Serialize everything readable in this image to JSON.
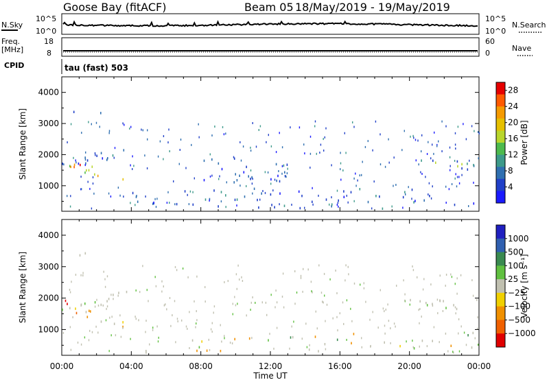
{
  "header": {
    "station": "Goose Bay (fitACF)",
    "beam": "Beam 05",
    "date_range": "18/May/2019 - 19/May/2019",
    "mode": "tau (fast) 503"
  },
  "strips": {
    "nsky_label": "N.Sky",
    "nsearch_label": "N.Search",
    "freq_label": "Freq.",
    "freq_unit": "[MHz]",
    "nave_label": "Nave",
    "cpid_label": "CPID",
    "top_left_ticks": [
      "10^5",
      "10^0"
    ],
    "top_right_ticks": [
      "10^5",
      "10^0"
    ],
    "bottom_left_ticks": [
      "18",
      "8"
    ],
    "bottom_right_ticks": [
      "60",
      "0"
    ]
  },
  "chart_data": [
    {
      "type": "heatmap",
      "title": "Power",
      "ylabel": "Slant Range [km]",
      "xlabel": "Time UT",
      "x_ticks": [
        "00:00",
        "04:00",
        "08:00",
        "12:00",
        "16:00",
        "20:00",
        "00:00"
      ],
      "y_ticks": [
        1000,
        2000,
        3000,
        4000
      ],
      "ylim": [
        180,
        4500
      ],
      "xlim_hours": [
        0,
        24
      ],
      "colorbar_label": "Power [dB]",
      "colorbar_ticks": [
        4,
        8,
        12,
        16,
        20,
        24,
        28
      ],
      "colorbar_colors": [
        "#1a1aff",
        "#2040c8",
        "#2f6fb0",
        "#3d9a8a",
        "#4dba4d",
        "#b9d62c",
        "#e6c000",
        "#f59a00",
        "#ff5a00",
        "#e60000"
      ],
      "regions": [
        {
          "t": [
            0.0,
            3.8
          ],
          "r": [
            1500,
            2300
          ],
          "level": "low"
        },
        {
          "t": [
            0.0,
            3.6
          ],
          "r": [
            1000,
            1800
          ],
          "level": "high"
        },
        {
          "t": [
            0.6,
            2.6
          ],
          "r": [
            3300,
            3500
          ],
          "level": "low"
        },
        {
          "t": [
            20.0,
            24.0
          ],
          "r": [
            1400,
            2100
          ],
          "level": "mid"
        },
        {
          "t": [
            4.0,
            24.0
          ],
          "r": [
            250,
            900
          ],
          "level": "low"
        },
        {
          "t": [
            8.0,
            13.0
          ],
          "r": [
            900,
            2100
          ],
          "level": "low"
        }
      ]
    },
    {
      "type": "heatmap",
      "title": "Velocity",
      "ylabel": "Slant Range [km]",
      "xlabel": "Time UT",
      "x_ticks": [
        "00:00",
        "04:00",
        "08:00",
        "12:00",
        "16:00",
        "20:00",
        "00:00"
      ],
      "y_ticks": [
        1000,
        2000,
        3000,
        4000
      ],
      "ylim": [
        180,
        4500
      ],
      "xlim_hours": [
        0,
        24
      ],
      "colorbar_label": "Velocity [m s^-1]",
      "colorbar_ticks": [
        1000,
        500,
        100,
        25,
        -25,
        -100,
        -500,
        -1000
      ],
      "colorbar_colors": [
        "#2020c0",
        "#3060b0",
        "#3a8a50",
        "#60c040",
        "#c0c0b0",
        "#f0d000",
        "#f09000",
        "#f06000",
        "#e00000"
      ],
      "regions": [
        {
          "t": [
            0.0,
            3.8
          ],
          "r": [
            1500,
            2300
          ],
          "level": "grey"
        },
        {
          "t": [
            0.0,
            3.6
          ],
          "r": [
            1000,
            1800
          ],
          "level": "neg"
        },
        {
          "t": [
            0.6,
            2.6
          ],
          "r": [
            3300,
            3500
          ],
          "level": "grey"
        },
        {
          "t": [
            20.0,
            24.0
          ],
          "r": [
            1400,
            2100
          ],
          "level": "grey"
        },
        {
          "t": [
            4.0,
            24.0
          ],
          "r": [
            250,
            900
          ],
          "level": "mixed"
        }
      ]
    }
  ]
}
